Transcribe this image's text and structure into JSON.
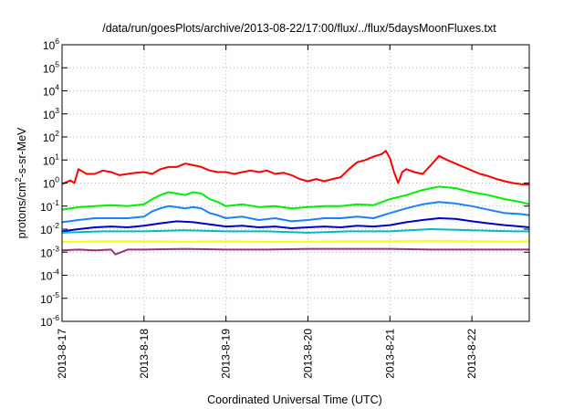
{
  "chart_data": {
    "type": "line",
    "title": "/data/run/goesPlots/archive/2013-08-22/17:00/flux/../flux/5daysMoonFluxes.txt",
    "xlabel": "Coordinated Universal Time (UTC)",
    "ylabel": {
      "prefix": "protons/cm",
      "sup": "2",
      "suffix": "-s-sr-MeV"
    },
    "x_unit": "days since 2013-8-17 00:00 UTC",
    "xlim": [
      0,
      5.7
    ],
    "x_ticks": [
      {
        "value": 0,
        "label": "2013-8-17"
      },
      {
        "value": 1,
        "label": "2013-8-18"
      },
      {
        "value": 2,
        "label": "2013-8-19"
      },
      {
        "value": 3,
        "label": "2013-8-20"
      },
      {
        "value": 4,
        "label": "2013-8-21"
      },
      {
        "value": 5,
        "label": "2013-8-22"
      }
    ],
    "y_scale": "log",
    "ylim": [
      1e-06,
      1000000.0
    ],
    "y_ticks": [
      {
        "value": 1e-06,
        "base": "10",
        "exp": "-6"
      },
      {
        "value": 1e-05,
        "base": "10",
        "exp": "-5"
      },
      {
        "value": 0.0001,
        "base": "10",
        "exp": "-4"
      },
      {
        "value": 0.001,
        "base": "10",
        "exp": "-3"
      },
      {
        "value": 0.01,
        "base": "10",
        "exp": "-2"
      },
      {
        "value": 0.1,
        "base": "10",
        "exp": "-1"
      },
      {
        "value": 1,
        "base": "10",
        "exp": "0"
      },
      {
        "value": 10,
        "base": "10",
        "exp": "1"
      },
      {
        "value": 100,
        "base": "10",
        "exp": "2"
      },
      {
        "value": 1000,
        "base": "10",
        "exp": "3"
      },
      {
        "value": 10000,
        "base": "10",
        "exp": "4"
      },
      {
        "value": 100000,
        "base": "10",
        "exp": "5"
      },
      {
        "value": 1000000,
        "base": "10",
        "exp": "6"
      }
    ],
    "grid": true,
    "series": [
      {
        "color": "#ff0000",
        "x": [
          0,
          0.1,
          0.15,
          0.2,
          0.3,
          0.4,
          0.5,
          0.6,
          0.7,
          0.8,
          0.9,
          1.0,
          1.1,
          1.2,
          1.3,
          1.4,
          1.5,
          1.6,
          1.7,
          1.8,
          1.9,
          2.0,
          2.1,
          2.2,
          2.3,
          2.4,
          2.5,
          2.6,
          2.7,
          2.8,
          2.9,
          3.0,
          3.1,
          3.2,
          3.3,
          3.4,
          3.5,
          3.6,
          3.7,
          3.8,
          3.9,
          3.95,
          4.0,
          4.05,
          4.1,
          4.15,
          4.2,
          4.3,
          4.4,
          4.5,
          4.6,
          4.7,
          4.8,
          4.9,
          5.0,
          5.1,
          5.2,
          5.3,
          5.4,
          5.5,
          5.6,
          5.7
        ],
        "y": [
          0.9,
          1.3,
          1.0,
          4.0,
          2.5,
          2.5,
          3.5,
          3.0,
          2.2,
          2.5,
          2.8,
          3.0,
          2.5,
          4.0,
          5.0,
          5.0,
          7.0,
          6.0,
          5.0,
          3.5,
          3.0,
          3.0,
          2.5,
          3.0,
          3.5,
          3.0,
          3.5,
          2.5,
          2.8,
          2.2,
          1.5,
          1.2,
          1.5,
          1.2,
          1.5,
          1.8,
          4.0,
          8.0,
          10.0,
          14.0,
          18.0,
          25.0,
          12.0,
          3.0,
          1.0,
          3.0,
          4.0,
          3.0,
          2.5,
          6.0,
          15.0,
          10.0,
          7.0,
          5.0,
          3.5,
          2.5,
          2.0,
          1.5,
          1.2,
          1.0,
          0.9,
          0.85
        ]
      },
      {
        "color": "#00ee00",
        "x": [
          0,
          0.2,
          0.4,
          0.6,
          0.8,
          1.0,
          1.1,
          1.2,
          1.3,
          1.4,
          1.5,
          1.6,
          1.7,
          1.8,
          1.9,
          2.0,
          2.2,
          2.4,
          2.6,
          2.8,
          3.0,
          3.2,
          3.4,
          3.6,
          3.8,
          4.0,
          4.2,
          4.4,
          4.6,
          4.8,
          5.0,
          5.2,
          5.4,
          5.6,
          5.7
        ],
        "y": [
          0.07,
          0.09,
          0.1,
          0.11,
          0.1,
          0.12,
          0.2,
          0.3,
          0.4,
          0.35,
          0.3,
          0.4,
          0.35,
          0.2,
          0.15,
          0.1,
          0.12,
          0.09,
          0.1,
          0.08,
          0.09,
          0.1,
          0.1,
          0.12,
          0.11,
          0.2,
          0.3,
          0.5,
          0.7,
          0.6,
          0.4,
          0.3,
          0.2,
          0.15,
          0.12
        ]
      },
      {
        "color": "#1a80ff",
        "x": [
          0,
          0.2,
          0.4,
          0.6,
          0.8,
          1.0,
          1.1,
          1.2,
          1.3,
          1.4,
          1.5,
          1.6,
          1.7,
          1.8,
          1.9,
          2.0,
          2.2,
          2.4,
          2.6,
          2.8,
          3.0,
          3.2,
          3.4,
          3.6,
          3.8,
          4.0,
          4.2,
          4.4,
          4.6,
          4.8,
          5.0,
          5.2,
          5.4,
          5.6,
          5.7
        ],
        "y": [
          0.02,
          0.025,
          0.03,
          0.03,
          0.03,
          0.035,
          0.06,
          0.08,
          0.1,
          0.09,
          0.08,
          0.09,
          0.08,
          0.05,
          0.04,
          0.03,
          0.035,
          0.025,
          0.03,
          0.022,
          0.025,
          0.03,
          0.03,
          0.035,
          0.03,
          0.05,
          0.08,
          0.12,
          0.15,
          0.13,
          0.1,
          0.07,
          0.05,
          0.045,
          0.04
        ]
      },
      {
        "color": "#0000cc",
        "x": [
          0,
          0.2,
          0.4,
          0.6,
          0.8,
          1.0,
          1.2,
          1.4,
          1.6,
          1.8,
          2.0,
          2.2,
          2.4,
          2.6,
          2.8,
          3.0,
          3.2,
          3.4,
          3.6,
          3.8,
          4.0,
          4.2,
          4.4,
          4.6,
          4.8,
          5.0,
          5.2,
          5.4,
          5.6,
          5.7
        ],
        "y": [
          0.008,
          0.01,
          0.012,
          0.013,
          0.012,
          0.014,
          0.018,
          0.022,
          0.02,
          0.016,
          0.013,
          0.014,
          0.012,
          0.013,
          0.011,
          0.012,
          0.013,
          0.012,
          0.014,
          0.013,
          0.015,
          0.02,
          0.025,
          0.03,
          0.028,
          0.022,
          0.018,
          0.015,
          0.013,
          0.012
        ]
      },
      {
        "color": "#00bbbb",
        "x": [
          0,
          0.5,
          1.0,
          1.5,
          2.0,
          2.5,
          3.0,
          3.5,
          4.0,
          4.5,
          5.0,
          5.5,
          5.7
        ],
        "y": [
          0.007,
          0.008,
          0.008,
          0.009,
          0.008,
          0.008,
          0.007,
          0.008,
          0.008,
          0.01,
          0.009,
          0.008,
          0.008
        ]
      },
      {
        "color": "#ffff00",
        "x": [
          0,
          0.5,
          1.0,
          1.5,
          2.0,
          2.5,
          3.0,
          3.5,
          4.0,
          4.5,
          5.0,
          5.5,
          5.7
        ],
        "y": [
          0.0028,
          0.003,
          0.003,
          0.0029,
          0.003,
          0.0028,
          0.0029,
          0.003,
          0.003,
          0.0031,
          0.003,
          0.0029,
          0.003
        ]
      },
      {
        "color": "#993377",
        "x": [
          0,
          0.2,
          0.4,
          0.6,
          0.65,
          0.8,
          1.0,
          1.5,
          2.0,
          2.5,
          3.0,
          3.5,
          4.0,
          4.5,
          5.0,
          5.5,
          5.7
        ],
        "y": [
          0.0012,
          0.0013,
          0.0012,
          0.0013,
          0.0008,
          0.0013,
          0.0013,
          0.0014,
          0.0013,
          0.0013,
          0.0014,
          0.0014,
          0.0014,
          0.0013,
          0.0013,
          0.0013,
          0.0013
        ]
      }
    ]
  }
}
